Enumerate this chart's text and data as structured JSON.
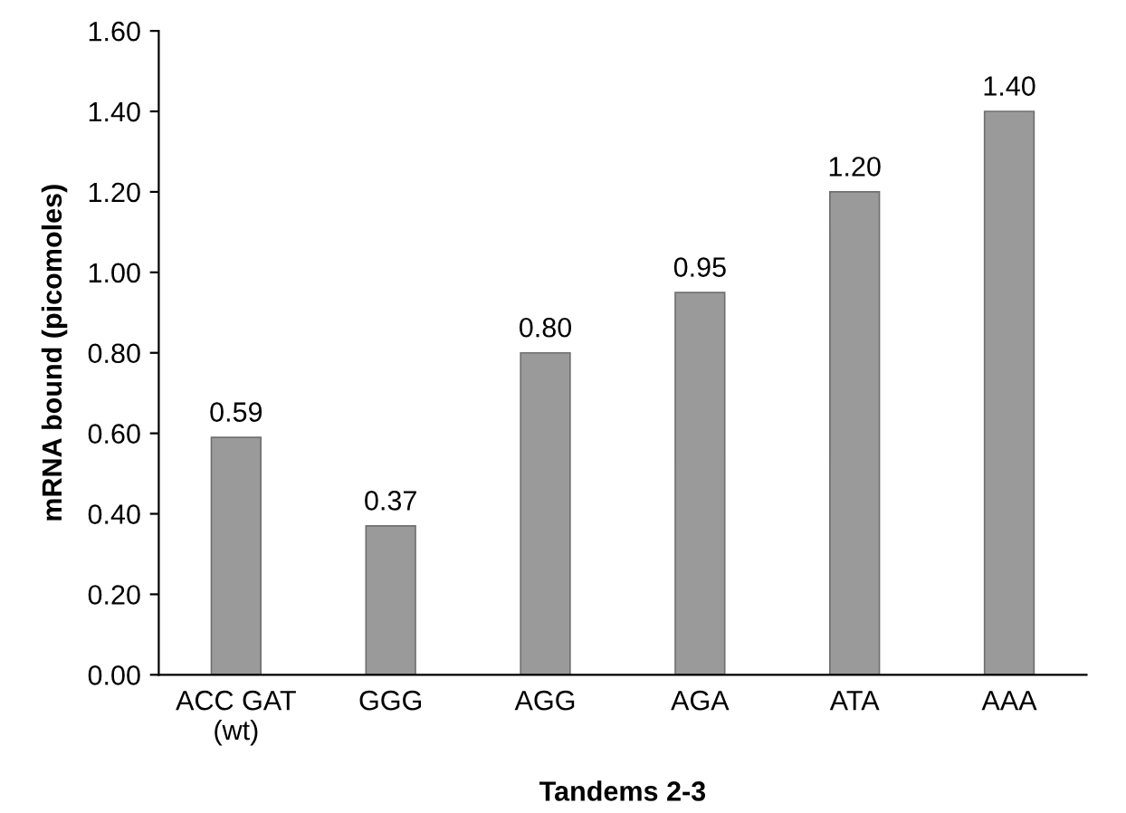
{
  "chart_data": {
    "type": "bar",
    "xlabel": "Tandems 2-3",
    "ylabel": "mRNA bound (picomoles)",
    "categories": [
      "ACC GAT\n(wt)",
      "GGG",
      "AGG",
      "AGA",
      "ATA",
      "AAA"
    ],
    "values": [
      0.59,
      0.37,
      0.8,
      0.95,
      1.2,
      1.4
    ],
    "value_labels": [
      "0.59",
      "0.37",
      "0.80",
      "0.95",
      "1.20",
      "1.40"
    ],
    "color": "#9a9a9a",
    "ylim": [
      0,
      1.6
    ],
    "yticks": [
      {
        "value": 0,
        "label": "0.00"
      },
      {
        "value": 0.2,
        "label": "0.20"
      },
      {
        "value": 0.4,
        "label": "0.40"
      },
      {
        "value": 0.6,
        "label": "0.60"
      },
      {
        "value": 0.8,
        "label": "0.80"
      },
      {
        "value": 1.0,
        "label": "1.00"
      },
      {
        "value": 1.2,
        "label": "1.20"
      },
      {
        "value": 1.4,
        "label": "1.40"
      },
      {
        "value": 1.6,
        "label": "1.60"
      }
    ],
    "grid": false,
    "legend": false
  }
}
